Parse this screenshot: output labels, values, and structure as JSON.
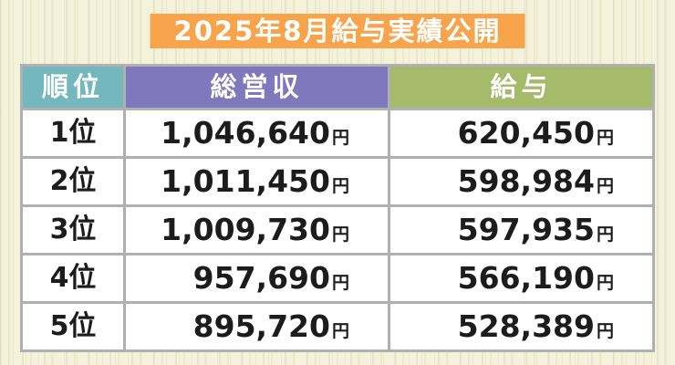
{
  "title": "2025年8月給与実績公開",
  "colors": {
    "banner_orange": "#f8a44c",
    "header_rank_teal": "#74b7bc",
    "header_revenue_purple": "#8078bd",
    "header_salary_olive": "#a5ba6b",
    "grid_gray": "#b0b0b0",
    "background_cream": "#f5f2dc",
    "cell_white": "#ffffff",
    "text_black": "#1c1c1c",
    "header_text_white": "#ffffff"
  },
  "table": {
    "headers": {
      "rank": "順位",
      "revenue": "総営収",
      "salary": "給与"
    },
    "unit": "円",
    "rows": [
      {
        "rank": "1位",
        "revenue": "1,046,640",
        "salary": "620,450"
      },
      {
        "rank": "2位",
        "revenue": "1,011,450",
        "salary": "598,984"
      },
      {
        "rank": "3位",
        "revenue": "1,009,730",
        "salary": "597,935"
      },
      {
        "rank": "4位",
        "revenue": "957,690",
        "salary": "566,190"
      },
      {
        "rank": "5位",
        "revenue": "895,720",
        "salary": "528,389"
      }
    ]
  },
  "chart_data": {
    "type": "table",
    "title": "2025年8月給与実績公開",
    "columns": [
      "順位",
      "総営収",
      "給与"
    ],
    "categories": [
      "1位",
      "2位",
      "3位",
      "4位",
      "5位"
    ],
    "rows": [
      [
        "1位",
        "1,046,640円",
        "620,450円"
      ],
      [
        "2位",
        "1,011,450円",
        "598,984円"
      ],
      [
        "3位",
        "1,009,730円",
        "597,935円"
      ],
      [
        "4位",
        "957,690円",
        "566,190円"
      ],
      [
        "5位",
        "895,720円",
        "528,389円"
      ]
    ],
    "series": [
      {
        "name": "総営収",
        "values": [
          1046640,
          1011450,
          1009730,
          957690,
          895720
        ]
      },
      {
        "name": "給与",
        "values": [
          620450,
          598984,
          597935,
          566190,
          528389
        ]
      }
    ]
  }
}
